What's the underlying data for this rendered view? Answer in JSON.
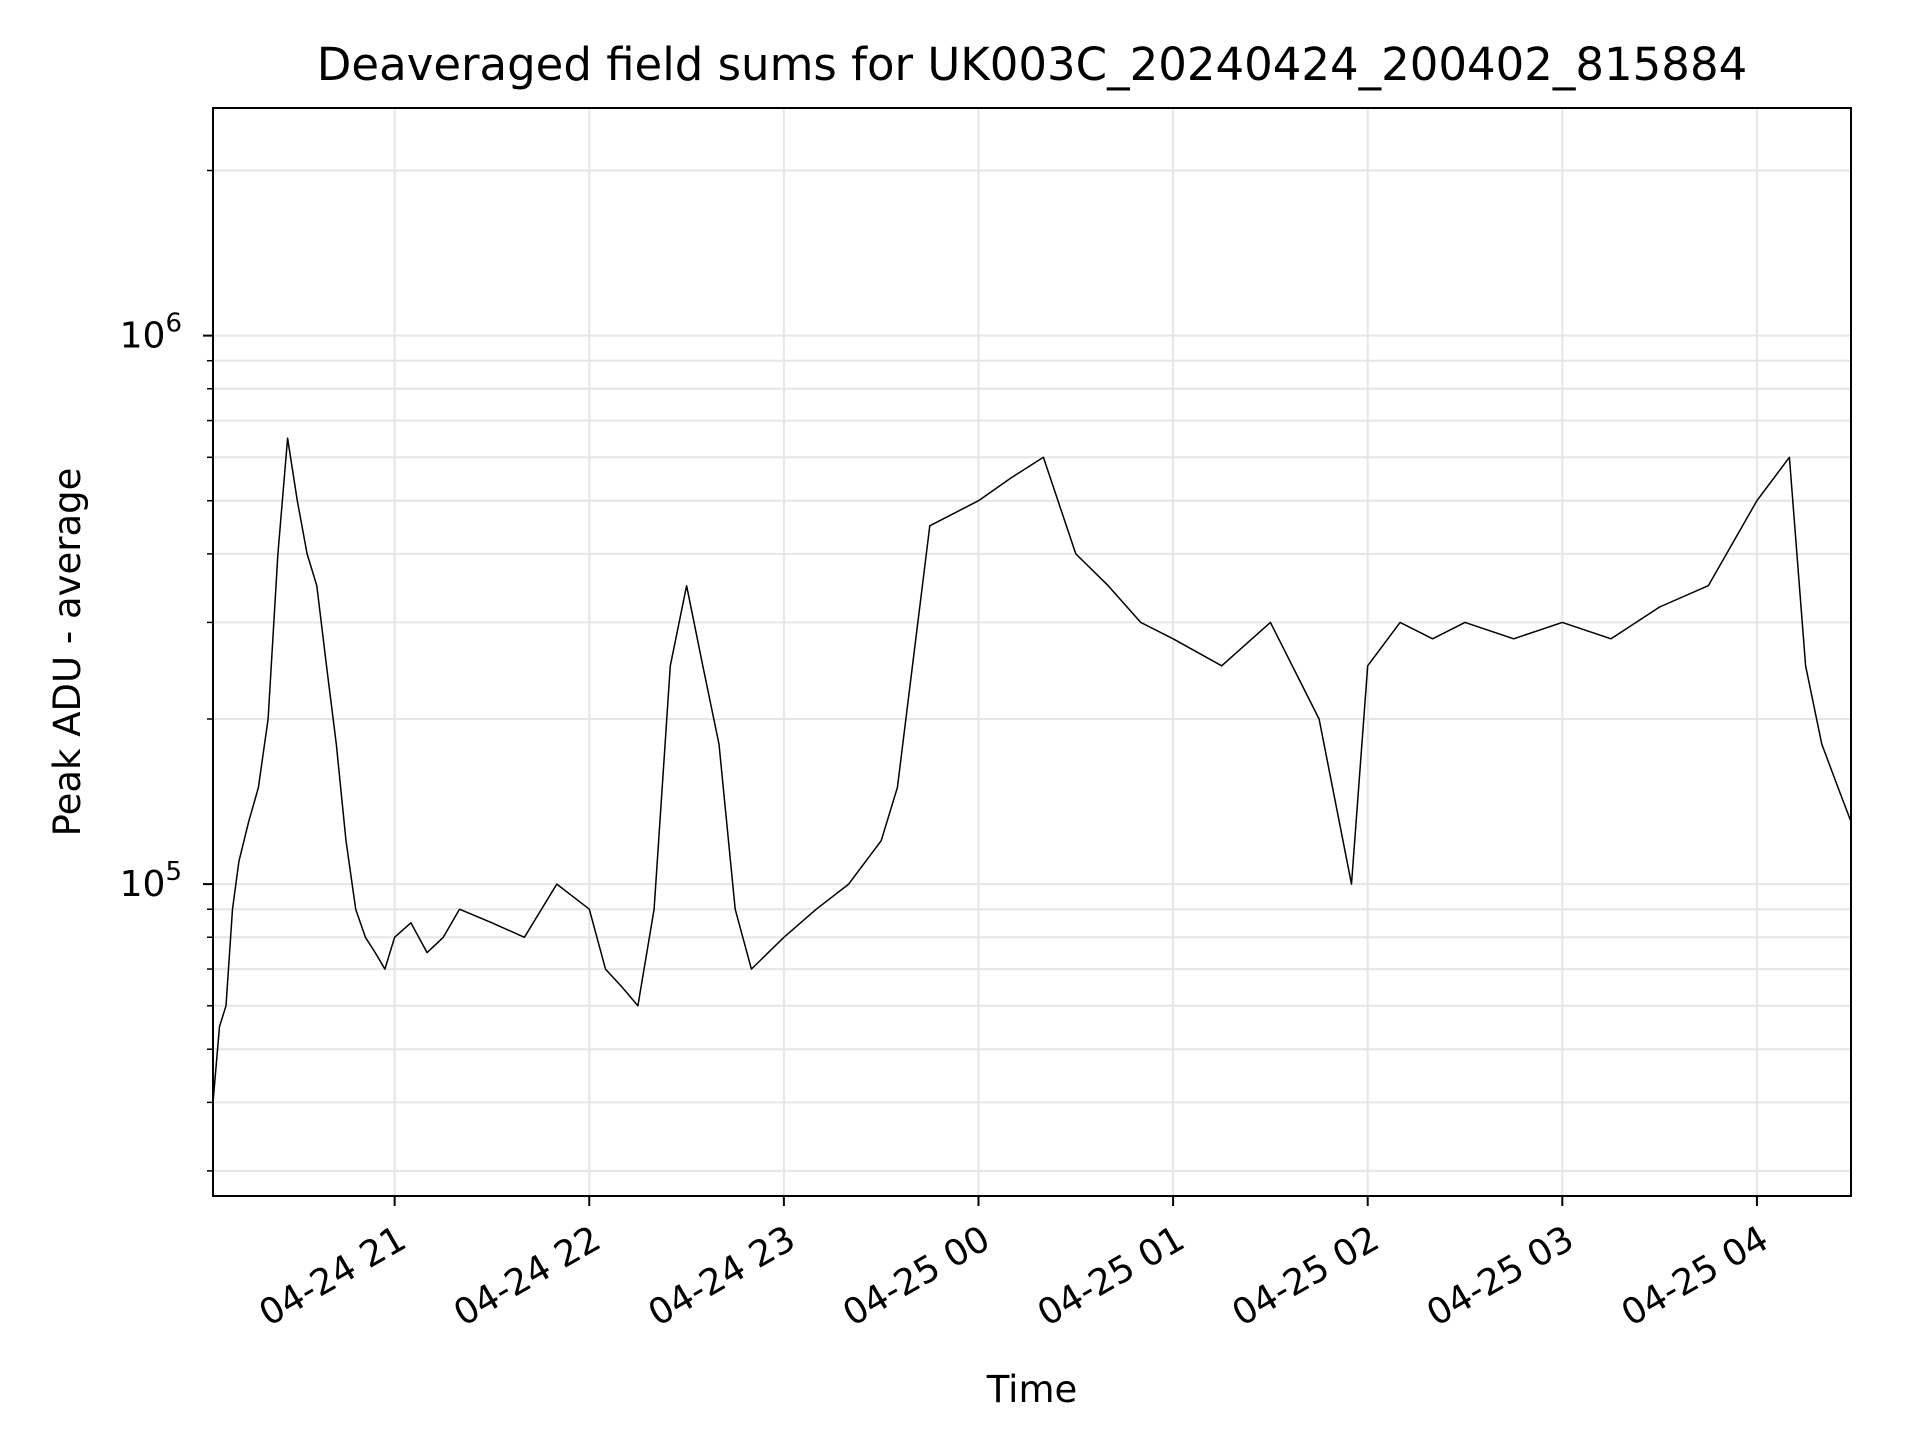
{
  "chart_data": {
    "type": "line",
    "title": "Deaveraged field sums for UK003C_20240424_200402_815884",
    "xlabel": "Time",
    "ylabel": "Peak ADU - average",
    "yscale": "log",
    "ylim": [
      27000,
      2600000
    ],
    "xlim": [
      "2024-04-24 20:04",
      "2024-04-25 04:29"
    ],
    "grid": true,
    "line_color": "#000000",
    "x_ticks": [
      {
        "value": "2024-04-24 21:00",
        "label": "04-24 21"
      },
      {
        "value": "2024-04-24 22:00",
        "label": "04-24 22"
      },
      {
        "value": "2024-04-24 23:00",
        "label": "04-24 23"
      },
      {
        "value": "2024-04-25 00:00",
        "label": "04-25 00"
      },
      {
        "value": "2024-04-25 01:00",
        "label": "04-25 01"
      },
      {
        "value": "2024-04-25 02:00",
        "label": "04-25 02"
      },
      {
        "value": "2024-04-25 03:00",
        "label": "04-25 03"
      },
      {
        "value": "2024-04-25 04:00",
        "label": "04-25 04"
      }
    ],
    "y_ticks": [
      {
        "value": 100000,
        "base": "10",
        "exp": "5"
      },
      {
        "value": 1000000,
        "base": "10",
        "exp": "6"
      }
    ],
    "series": [
      {
        "x": [
          "2024-04-24 20:04",
          "2024-04-24 20:06",
          "2024-04-24 20:08",
          "2024-04-24 20:10",
          "2024-04-24 20:12",
          "2024-04-24 20:15",
          "2024-04-24 20:18",
          "2024-04-24 20:21",
          "2024-04-24 20:24",
          "2024-04-24 20:27",
          "2024-04-24 20:30",
          "2024-04-24 20:33",
          "2024-04-24 20:36",
          "2024-04-24 20:39",
          "2024-04-24 20:42",
          "2024-04-24 20:45",
          "2024-04-24 20:48",
          "2024-04-24 20:51",
          "2024-04-24 20:54",
          "2024-04-24 20:57",
          "2024-04-24 21:00",
          "2024-04-24 21:05",
          "2024-04-24 21:10",
          "2024-04-24 21:15",
          "2024-04-24 21:20",
          "2024-04-24 21:30",
          "2024-04-24 21:40",
          "2024-04-24 21:50",
          "2024-04-24 22:00",
          "2024-04-24 22:05",
          "2024-04-24 22:10",
          "2024-04-24 22:15",
          "2024-04-24 22:20",
          "2024-04-24 22:25",
          "2024-04-24 22:30",
          "2024-04-24 22:35",
          "2024-04-24 22:40",
          "2024-04-24 22:45",
          "2024-04-24 22:50",
          "2024-04-24 23:00",
          "2024-04-24 23:10",
          "2024-04-24 23:20",
          "2024-04-24 23:30",
          "2024-04-24 23:35",
          "2024-04-24 23:45",
          "2024-04-25 00:00",
          "2024-04-25 00:10",
          "2024-04-25 00:20",
          "2024-04-25 00:30",
          "2024-04-25 00:40",
          "2024-04-25 00:50",
          "2024-04-25 01:00",
          "2024-04-25 01:15",
          "2024-04-25 01:30",
          "2024-04-25 01:45",
          "2024-04-25 01:55",
          "2024-04-25 02:00",
          "2024-04-25 02:10",
          "2024-04-25 02:20",
          "2024-04-25 02:30",
          "2024-04-25 02:45",
          "2024-04-25 03:00",
          "2024-04-25 03:15",
          "2024-04-25 03:30",
          "2024-04-25 03:45",
          "2024-04-25 04:00",
          "2024-04-25 04:10",
          "2024-04-25 04:15",
          "2024-04-25 04:20",
          "2024-04-25 04:25",
          "2024-04-25 04:29"
        ],
        "y": [
          40000,
          55000,
          60000,
          90000,
          110000,
          130000,
          150000,
          200000,
          400000,
          650000,
          500000,
          400000,
          350000,
          250000,
          180000,
          120000,
          90000,
          80000,
          75000,
          70000,
          80000,
          85000,
          75000,
          80000,
          90000,
          85000,
          80000,
          100000,
          90000,
          70000,
          65000,
          60000,
          90000,
          250000,
          350000,
          250000,
          180000,
          90000,
          70000,
          80000,
          90000,
          100000,
          120000,
          150000,
          450000,
          500000,
          550000,
          600000,
          400000,
          350000,
          300000,
          280000,
          250000,
          300000,
          200000,
          100000,
          250000,
          300000,
          280000,
          300000,
          280000,
          300000,
          280000,
          320000,
          350000,
          500000,
          600000,
          250000,
          180000,
          150000,
          130000
        ]
      }
    ]
  }
}
